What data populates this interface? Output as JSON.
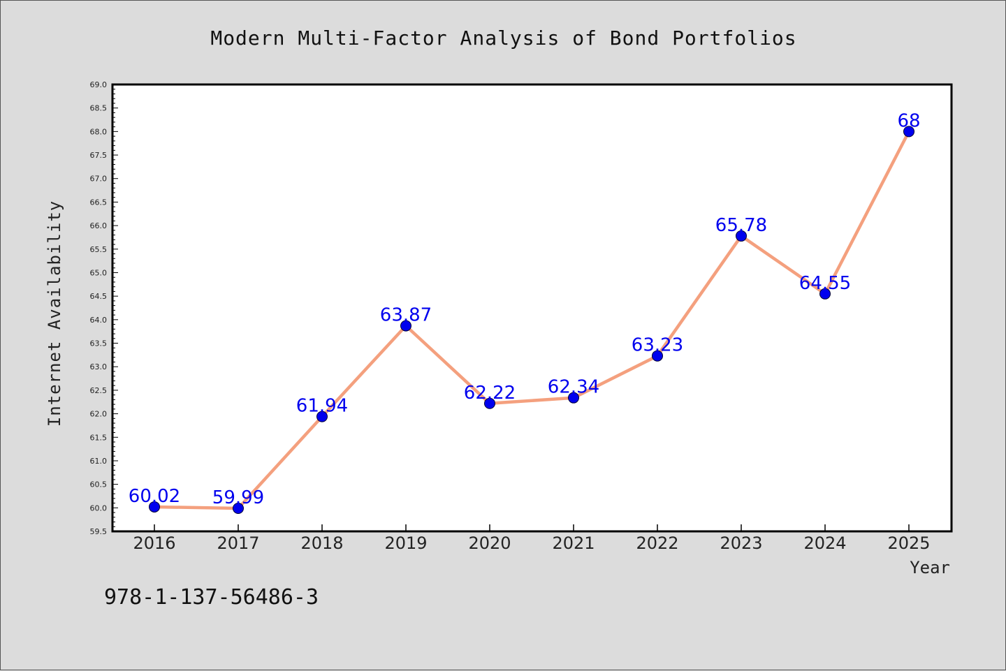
{
  "chart_data": {
    "type": "line",
    "title": "Modern Multi-Factor Analysis of Bond Portfolios",
    "xlabel": "Year",
    "ylabel": "Internet Availability",
    "categories": [
      "2016",
      "2017",
      "2018",
      "2019",
      "2020",
      "2021",
      "2022",
      "2023",
      "2024",
      "2025"
    ],
    "series": [
      {
        "values": [
          60.02,
          59.99,
          61.94,
          63.87,
          62.22,
          62.34,
          63.23,
          65.78,
          64.55,
          68
        ],
        "labels": [
          "60.02",
          "59.99",
          "61.94",
          "63.87",
          "62.22",
          "62.34",
          "63.23",
          "65.78",
          "64.55",
          "68"
        ]
      }
    ],
    "ylim": [
      59.5,
      69.0
    ],
    "y_major_step": 0.5,
    "grid": false,
    "legend": "none",
    "colors": {
      "line": "#f4a07e",
      "marker": "#0000ee",
      "label": "#0000ee",
      "background": "#dcdcdc",
      "plot": "#ffffff"
    }
  },
  "annotation": {
    "text": "978-1-137-56486-3"
  }
}
